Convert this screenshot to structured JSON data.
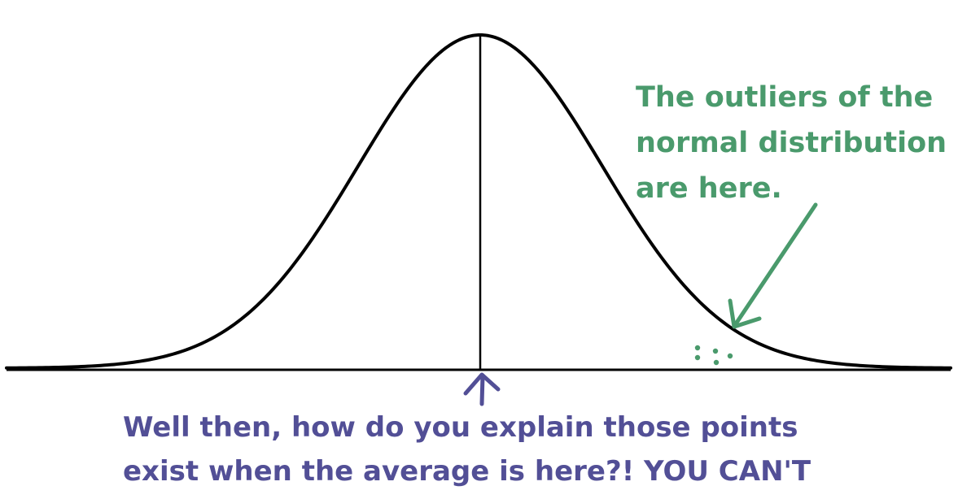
{
  "annotations": {
    "outliers": {
      "lines": [
        "The outliers of the",
        "normal distribution",
        "are here."
      ],
      "color": "#4a9a6c"
    },
    "average": {
      "lines": [
        "Well then, how do you explain those points",
        "exist when the average is here?! YOU CAN'T"
      ],
      "color": "#524f96"
    }
  },
  "colors": {
    "curve": "#000000",
    "background": "#ffffff"
  }
}
